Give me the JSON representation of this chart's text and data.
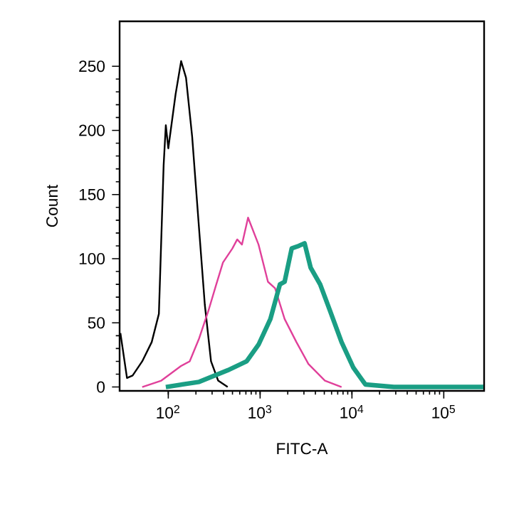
{
  "chart_data": {
    "type": "line",
    "xlabel": "FITC-A",
    "ylabel": "Count",
    "log": "x",
    "xlim": [
      29.5,
      275000
    ],
    "ylim": [
      -3,
      285
    ],
    "xticks": [
      {
        "value": 100,
        "label": "10$^{2}$"
      },
      {
        "value": 1000,
        "label": "10$^{3}$"
      },
      {
        "value": 10000,
        "label": "10$^{4}$"
      },
      {
        "value": 100000,
        "label": "10$^{5}$"
      }
    ],
    "yticks": [
      0,
      50,
      100,
      150,
      200,
      250
    ],
    "grid": false,
    "marker": "none",
    "line_style": "solid",
    "series": [
      {
        "color": "#000000",
        "x": [
          30.1,
          35.5,
          40.9,
          52,
          66,
          79,
          89,
          94,
          100,
          120,
          138,
          156,
          182,
          217,
          250,
          292,
          349,
          443
        ],
        "values": [
          42,
          7,
          9,
          20,
          35,
          57,
          173,
          204,
          186,
          228,
          254,
          241,
          195,
          122,
          64,
          20,
          5,
          0
        ]
      },
      {
        "color": "#e0409a",
        "x": [
          52,
          84,
          135,
          171,
          217,
          275,
          330,
          394,
          499,
          563,
          634,
          739,
          961,
          1217,
          1455,
          1849,
          2485,
          3356,
          5075,
          7709
        ],
        "values": [
          0,
          5,
          16,
          20,
          38,
          60,
          79,
          97,
          108,
          115,
          111,
          132,
          111,
          82,
          77,
          53,
          35,
          18,
          5,
          0
        ]
      },
      {
        "color": "#1a9e84",
        "x": [
          94,
          217,
          443,
          713,
          961,
          1294,
          1643,
          1849,
          2208,
          2642,
          3048,
          3550,
          4507,
          5728,
          7709,
          10370,
          14000,
          28600,
          270000
        ],
        "values": [
          0,
          4,
          13,
          20,
          33,
          53,
          80,
          82,
          108,
          110,
          112,
          93,
          80,
          60,
          35,
          15,
          2,
          0,
          0
        ]
      }
    ]
  }
}
